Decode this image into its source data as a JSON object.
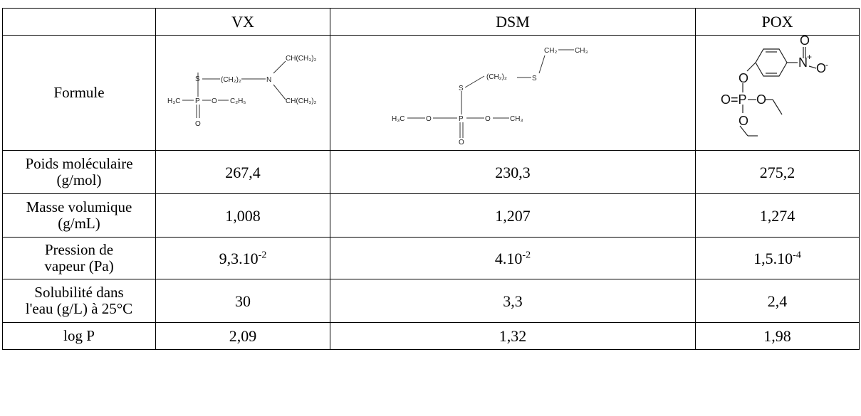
{
  "header": {
    "empty": "",
    "columns": [
      "VX",
      "DSM",
      "POX"
    ]
  },
  "rows": {
    "formule": {
      "label": "Formule"
    },
    "poids": {
      "label_line1": "Poids moléculaire",
      "label_line2": "(g/mol)",
      "values": [
        "267,4",
        "230,3",
        "275,2"
      ]
    },
    "masse": {
      "label_line1": "Masse volumique",
      "label_line2": "(g/mL)",
      "values": [
        "1,008",
        "1,207",
        "1,274"
      ]
    },
    "pression": {
      "label_line1": "Pression de",
      "label_line2": "vapeur (Pa)",
      "values": [
        {
          "base": "9,3.10",
          "exp": "-2"
        },
        {
          "base": "4.10",
          "exp": "-2"
        },
        {
          "base": "1,5.10",
          "exp": "-4"
        }
      ]
    },
    "solubilite": {
      "label_line1": "Solubilité dans",
      "label_line2": "l'eau (g/L) à 25°C",
      "values": [
        "30",
        "3,3",
        "2,4"
      ]
    },
    "logp": {
      "label": "log P",
      "values": [
        "2,09",
        "1,32",
        "1,98"
      ]
    }
  },
  "structures": {
    "vx": {
      "atoms": [
        "S",
        "(CH₂)₂",
        "N",
        "CH(CH₃)₂",
        "CH(CH₃)₂",
        "H₃C",
        "P",
        "O",
        "C₂H₅",
        "O"
      ]
    },
    "dsm": {
      "atoms": [
        "CH₂",
        "CH₃",
        "(CH₂)₂",
        "S",
        "S",
        "H₃C",
        "O",
        "P",
        "O",
        "CH₃",
        "O"
      ]
    },
    "pox": {
      "atoms": [
        "O",
        "N",
        "+",
        "O",
        "-",
        "O",
        "O=P",
        "O",
        "O"
      ]
    }
  }
}
